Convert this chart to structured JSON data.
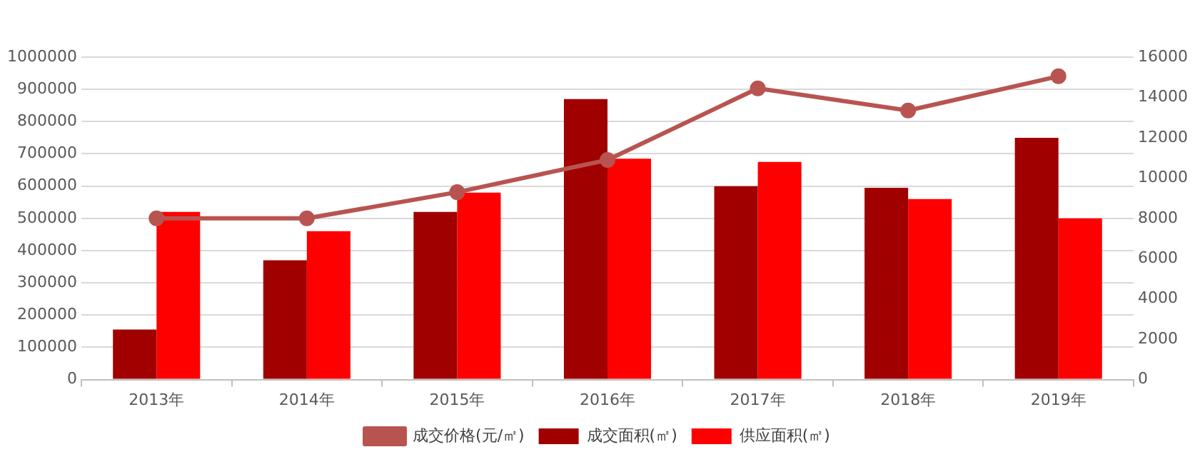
{
  "chart_data": {
    "type": "bar",
    "categories": [
      "2013年",
      "2014年",
      "2015年",
      "2016年",
      "2017年",
      "2018年",
      "2019年"
    ],
    "series": [
      {
        "name": "成交面积(㎡)",
        "color": "#a00000",
        "values": [
          155000,
          370000,
          520000,
          870000,
          600000,
          595000,
          750000
        ]
      },
      {
        "name": "供应面积(㎡)",
        "color": "#ff0000",
        "values": [
          520000,
          460000,
          580000,
          685000,
          675000,
          560000,
          500000
        ]
      },
      {
        "name": "成交价格(元/㎡)",
        "type": "line",
        "axis": "y2",
        "color": "#b85450",
        "marker": "circle",
        "values": [
          8000,
          8000,
          9300,
          10900,
          14450,
          13350,
          15050
        ]
      }
    ],
    "ylim": [
      0,
      1000000
    ],
    "yticks": [
      0,
      100000,
      200000,
      300000,
      400000,
      500000,
      600000,
      700000,
      800000,
      900000,
      1000000
    ],
    "y2lim": [
      0,
      16000
    ],
    "y2ticks": [
      0,
      2000,
      4000,
      6000,
      8000,
      10000,
      12000,
      14000,
      16000
    ],
    "grid": "y",
    "legend": "bottom"
  }
}
